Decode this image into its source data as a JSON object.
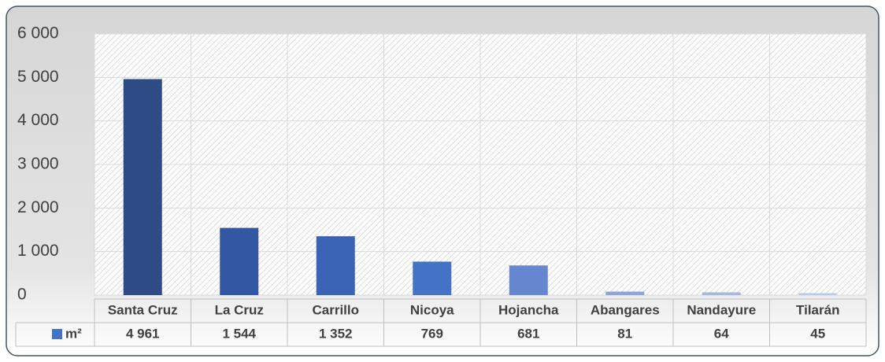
{
  "chart_data": {
    "type": "bar",
    "categories": [
      "Santa Cruz",
      "La Cruz",
      "Carrillo",
      "Nicoya",
      "Hojancha",
      "Abangares",
      "Nandayure",
      "Tilarán"
    ],
    "series": [
      {
        "name": "m²",
        "color": "#4472c4",
        "values": [
          4961,
          1544,
          1352,
          769,
          681,
          81,
          64,
          45
        ],
        "value_labels": [
          "4 961",
          "1 544",
          "1 352",
          "769",
          "681",
          "81",
          "64",
          "45"
        ]
      }
    ],
    "colors": [
      "#2f4b86",
      "#3457a2",
      "#3a63b6",
      "#4472c4",
      "#6686cf",
      "#8ea5da",
      "#a7b8e0",
      "#bccae8"
    ],
    "ylim": [
      0,
      6000
    ],
    "yticks": [
      {
        "value": 0,
        "label": "0"
      },
      {
        "value": 1000,
        "label": "1 000"
      },
      {
        "value": 2000,
        "label": "2 000"
      },
      {
        "value": 3000,
        "label": "3 000"
      },
      {
        "value": 4000,
        "label": "4 000"
      },
      {
        "value": 5000,
        "label": "5 000"
      },
      {
        "value": 6000,
        "label": "6 000"
      }
    ],
    "grid": true
  }
}
